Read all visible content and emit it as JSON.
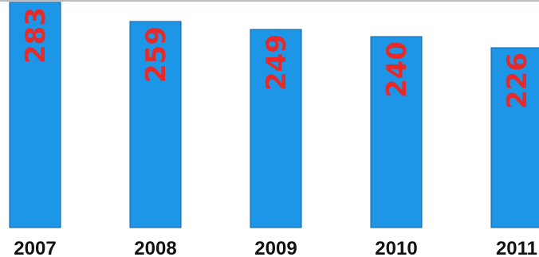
{
  "chart_data": {
    "type": "bar",
    "categories": [
      "2007",
      "2008",
      "2009",
      "2010",
      "2011"
    ],
    "values": [
      283,
      259,
      249,
      240,
      226
    ],
    "ylim": [
      0,
      286
    ],
    "title": "",
    "xlabel": "",
    "ylabel": "",
    "grid": false,
    "colors": {
      "bar": "#1e96e8",
      "bar_edge": "#0d5fa0",
      "data_label": "#e62a2a",
      "tick_label": "#111111",
      "top_line": "#b8bcc2"
    }
  }
}
